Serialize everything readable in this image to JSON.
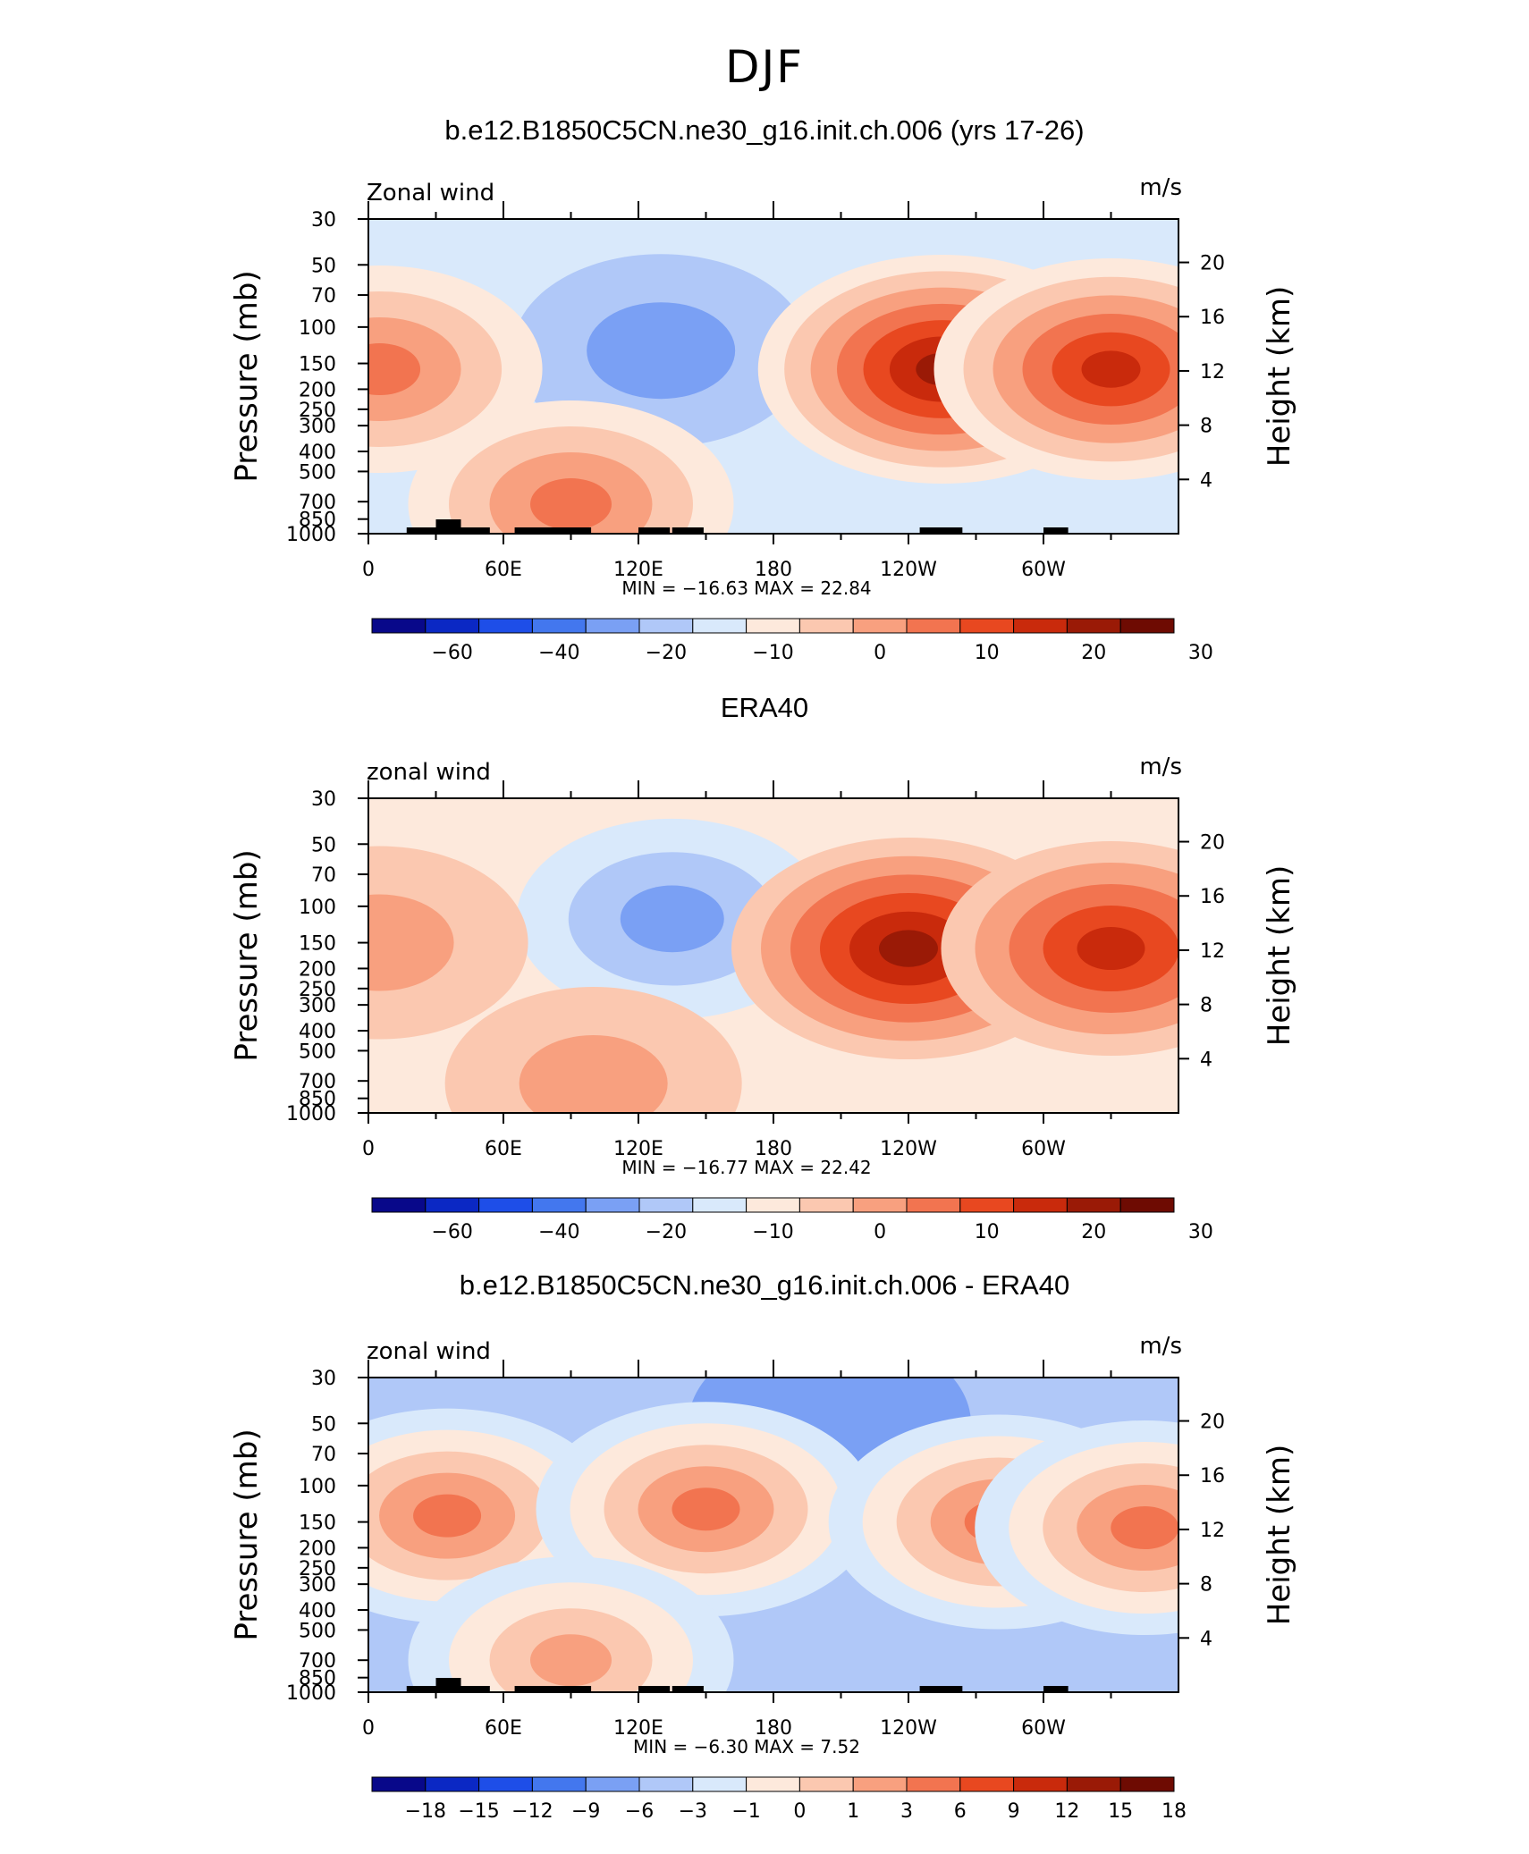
{
  "figure": {
    "title": "DJF"
  },
  "colors": {
    "panel_scale": [
      "#08088a",
      "#0b28c4",
      "#1e4ee8",
      "#4377ee",
      "#7aa0f4",
      "#b0c8f8",
      "#d9e9fb",
      "#fde9dc",
      "#fbc8b0",
      "#f8a07f",
      "#f27450",
      "#e84820",
      "#c92a0c",
      "#9a1a06",
      "#6e0b02"
    ],
    "land": "#000000"
  },
  "chart_data": [
    {
      "type": "heatmap",
      "title": "b.e12.B1850C5CN.ne30_g16.init.ch.006 (yrs 17-26)",
      "left_label": "Zonal wind",
      "right_label": "m/s",
      "ylabel": "Pressure  (mb)",
      "ylabel_right": "Height  (km)",
      "xticks": [
        "0",
        "60E",
        "120E",
        "180",
        "120W",
        "60W"
      ],
      "yticks": [
        "30",
        "50",
        "70",
        "100",
        "150",
        "200",
        "250",
        "300",
        "400",
        "500",
        "700",
        "850",
        "1000"
      ],
      "yticks_right": [
        "20",
        "16",
        "12",
        "8",
        "4"
      ],
      "xlim": [
        0,
        360
      ],
      "ylim": [
        1000,
        30
      ],
      "log_y": true,
      "stats": "MIN = −16.63   MAX =   22.84",
      "colorbar_ticks": [
        "−60",
        "−40",
        "−20",
        "−10",
        "0",
        "10",
        "20",
        "30"
      ],
      "features": [
        {
          "lon": 130,
          "p": 130,
          "value": -15
        },
        {
          "lon": 255,
          "p": 160,
          "value": 22
        },
        {
          "lon": 330,
          "p": 160,
          "value": 18
        },
        {
          "lon": 5,
          "p": 160,
          "value": 6
        },
        {
          "lon": 90,
          "p": 720,
          "value": 6
        }
      ]
    },
    {
      "type": "heatmap",
      "title": "ERA40",
      "left_label": "zonal wind",
      "right_label": "m/s",
      "ylabel": "Pressure  (mb)",
      "ylabel_right": "Height  (km)",
      "xticks": [
        "0",
        "60E",
        "120E",
        "180",
        "120W",
        "60W"
      ],
      "yticks": [
        "30",
        "50",
        "70",
        "100",
        "150",
        "200",
        "250",
        "300",
        "400",
        "500",
        "700",
        "850",
        "1000"
      ],
      "yticks_right": [
        "20",
        "16",
        "12",
        "8",
        "4"
      ],
      "xlim": [
        0,
        360
      ],
      "ylim": [
        1000,
        30
      ],
      "log_y": true,
      "stats": "MIN = −16.77   MAX =   22.42",
      "colorbar_ticks": [
        "−60",
        "−40",
        "−20",
        "−10",
        "0",
        "10",
        "20",
        "30"
      ],
      "features": [
        {
          "lon": 135,
          "p": 115,
          "value": -16
        },
        {
          "lon": 240,
          "p": 160,
          "value": 22
        },
        {
          "lon": 330,
          "p": 160,
          "value": 20
        },
        {
          "lon": 5,
          "p": 150,
          "value": 3
        },
        {
          "lon": 100,
          "p": 720,
          "value": 5
        }
      ]
    },
    {
      "type": "heatmap",
      "title": "b.e12.B1850C5CN.ne30_g16.init.ch.006 - ERA40",
      "left_label": "zonal wind",
      "right_label": "m/s",
      "ylabel": "Pressure  (mb)",
      "ylabel_right": "Height  (km)",
      "xticks": [
        "0",
        "60E",
        "120E",
        "180",
        "120W",
        "60W"
      ],
      "yticks": [
        "30",
        "50",
        "70",
        "100",
        "150",
        "200",
        "250",
        "300",
        "400",
        "500",
        "700",
        "850",
        "1000"
      ],
      "yticks_right": [
        "20",
        "16",
        "12",
        "8",
        "4"
      ],
      "xlim": [
        0,
        360
      ],
      "ylim": [
        1000,
        30
      ],
      "log_y": true,
      "stats": "MIN =   −6.30   MAX =     7.52",
      "colorbar_ticks": [
        "−18",
        "−15",
        "−12",
        "−9",
        "−6",
        "−3",
        "−1",
        "0",
        "1",
        "3",
        "6",
        "9",
        "12",
        "15",
        "18"
      ],
      "features": [
        {
          "lon": 205,
          "p": 50,
          "value": -6
        },
        {
          "lon": 35,
          "p": 140,
          "value": 4
        },
        {
          "lon": 150,
          "p": 130,
          "value": 4
        },
        {
          "lon": 280,
          "p": 150,
          "value": 4
        },
        {
          "lon": 345,
          "p": 160,
          "value": 6
        },
        {
          "lon": 220,
          "p": 250,
          "value": -4
        },
        {
          "lon": 90,
          "p": 700,
          "value": 3
        },
        {
          "lon": 160,
          "p": 500,
          "value": -4
        }
      ]
    }
  ]
}
